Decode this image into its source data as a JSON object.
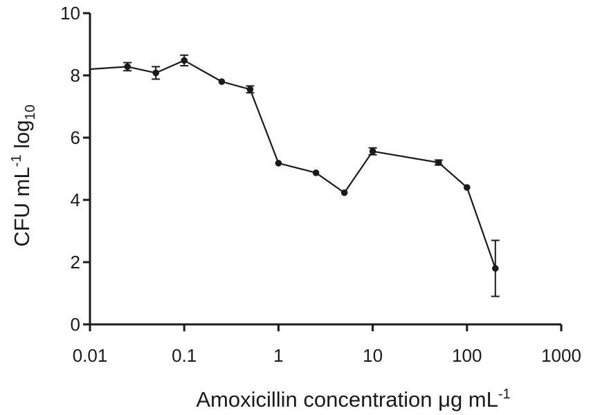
{
  "chart_data": {
    "type": "line",
    "title": "",
    "x_scale": "log",
    "xlim": [
      0.01,
      1000
    ],
    "ylim": [
      0,
      10
    ],
    "grid": false,
    "xlabel": {
      "main": "Amoxicillin concentration μg mL",
      "sup": "-1"
    },
    "ylabel": {
      "main": "CFU mL",
      "sup": "-1",
      "tail": " log",
      "sub": "10"
    },
    "x_ticks": [
      0.01,
      0.1,
      1,
      10,
      100,
      1000
    ],
    "x_tick_labels": [
      "0.01",
      "0.1",
      "1",
      "10",
      "100",
      "1000"
    ],
    "y_ticks": [
      0,
      2,
      4,
      6,
      8,
      10
    ],
    "y_tick_labels": [
      "0",
      "2",
      "4",
      "6",
      "8",
      "10"
    ],
    "series": [
      {
        "color": "#1a1a1a",
        "x": [
          0.01,
          0.025,
          0.05,
          0.1,
          0.25,
          0.5,
          1,
          2.5,
          5,
          10,
          50,
          100,
          200
        ],
        "y": [
          8.2,
          8.28,
          8.08,
          8.48,
          7.8,
          7.55,
          5.18,
          4.87,
          4.23,
          5.56,
          5.2,
          4.4,
          1.8
        ],
        "err": [
          0,
          0.13,
          0.2,
          0.17,
          0,
          0.11,
          0,
          0,
          0,
          0.11,
          0.08,
          0,
          0.9
        ],
        "markers": [
          false,
          true,
          true,
          true,
          true,
          true,
          true,
          true,
          true,
          true,
          true,
          true,
          true
        ]
      }
    ]
  }
}
